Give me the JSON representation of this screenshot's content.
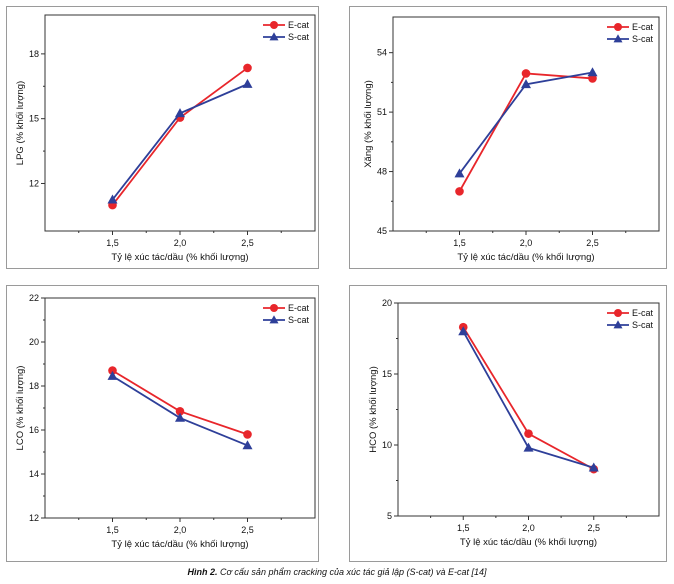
{
  "colors": {
    "ecat": "#e8262b",
    "scat": "#2e3f99",
    "axis": "#333333",
    "panelBorder": "#9a9a9a"
  },
  "caption": {
    "prefix": "Hình 2.",
    "text": "Cơ cấu sản phẩm cracking của xúc tác giả lập (S-cat) và E-cat [14]"
  },
  "chart_data": [
    {
      "type": "line",
      "ylabel": "LPG (% khối lượng)",
      "xlabel": "Tỷ lệ xúc tác/dầu (% khối lượng)",
      "x": [
        1.5,
        2.0,
        2.5
      ],
      "xticks": [
        "1,5",
        "2,0",
        "2,5"
      ],
      "xlim": [
        1.0,
        3.0
      ],
      "ylim": [
        9.8,
        19.8
      ],
      "yticks": [
        12,
        15,
        18
      ],
      "legend_position": "top-right",
      "series": [
        {
          "name": "E-cat",
          "marker": "circle",
          "values": [
            11.0,
            15.05,
            17.35
          ]
        },
        {
          "name": "S-cat",
          "marker": "triangle",
          "values": [
            11.25,
            15.25,
            16.6
          ]
        }
      ]
    },
    {
      "type": "line",
      "ylabel": "Xăng (% khối lượng)",
      "xlabel": "Tỷ lệ xúc tác/dầu (% khối lượng)",
      "x": [
        1.5,
        2.0,
        2.5
      ],
      "xticks": [
        "1,5",
        "2,0",
        "2,5"
      ],
      "xlim": [
        1.0,
        3.0
      ],
      "ylim": [
        45,
        55.8
      ],
      "yticks": [
        45,
        48,
        51,
        54
      ],
      "legend_position": "top-right",
      "series": [
        {
          "name": "E-cat",
          "marker": "circle",
          "values": [
            47.0,
            52.95,
            52.7
          ]
        },
        {
          "name": "S-cat",
          "marker": "triangle",
          "values": [
            47.9,
            52.4,
            53.0
          ]
        }
      ]
    },
    {
      "type": "line",
      "ylabel": "LCO (% khối lượng)",
      "xlabel": "Tỷ lệ xúc tác/dầu (% khối lượng)",
      "x": [
        1.5,
        2.0,
        2.5
      ],
      "xticks": [
        "1,5",
        "2,0",
        "2,5"
      ],
      "xlim": [
        1.0,
        3.0
      ],
      "ylim": [
        12,
        22
      ],
      "yticks": [
        12,
        14,
        16,
        18,
        20,
        22
      ],
      "legend_position": "top-right",
      "series": [
        {
          "name": "E-cat",
          "marker": "circle",
          "values": [
            18.7,
            16.85,
            15.8
          ]
        },
        {
          "name": "S-cat",
          "marker": "triangle",
          "values": [
            18.45,
            16.55,
            15.3
          ]
        }
      ]
    },
    {
      "type": "line",
      "ylabel": "HCO (% khối lượng)",
      "xlabel": "Tỷ lệ xúc tác/dầu (% khối lượng)",
      "x": [
        1.5,
        2.0,
        2.5
      ],
      "xticks": [
        "1,5",
        "2,0",
        "2,5"
      ],
      "xlim": [
        1.0,
        3.0
      ],
      "ylim": [
        5,
        20
      ],
      "yticks": [
        5,
        10,
        15,
        20
      ],
      "legend_position": "top-right",
      "series": [
        {
          "name": "E-cat",
          "marker": "circle",
          "values": [
            18.3,
            10.8,
            8.3
          ]
        },
        {
          "name": "S-cat",
          "marker": "triangle",
          "values": [
            18.0,
            9.8,
            8.4
          ]
        }
      ]
    }
  ]
}
